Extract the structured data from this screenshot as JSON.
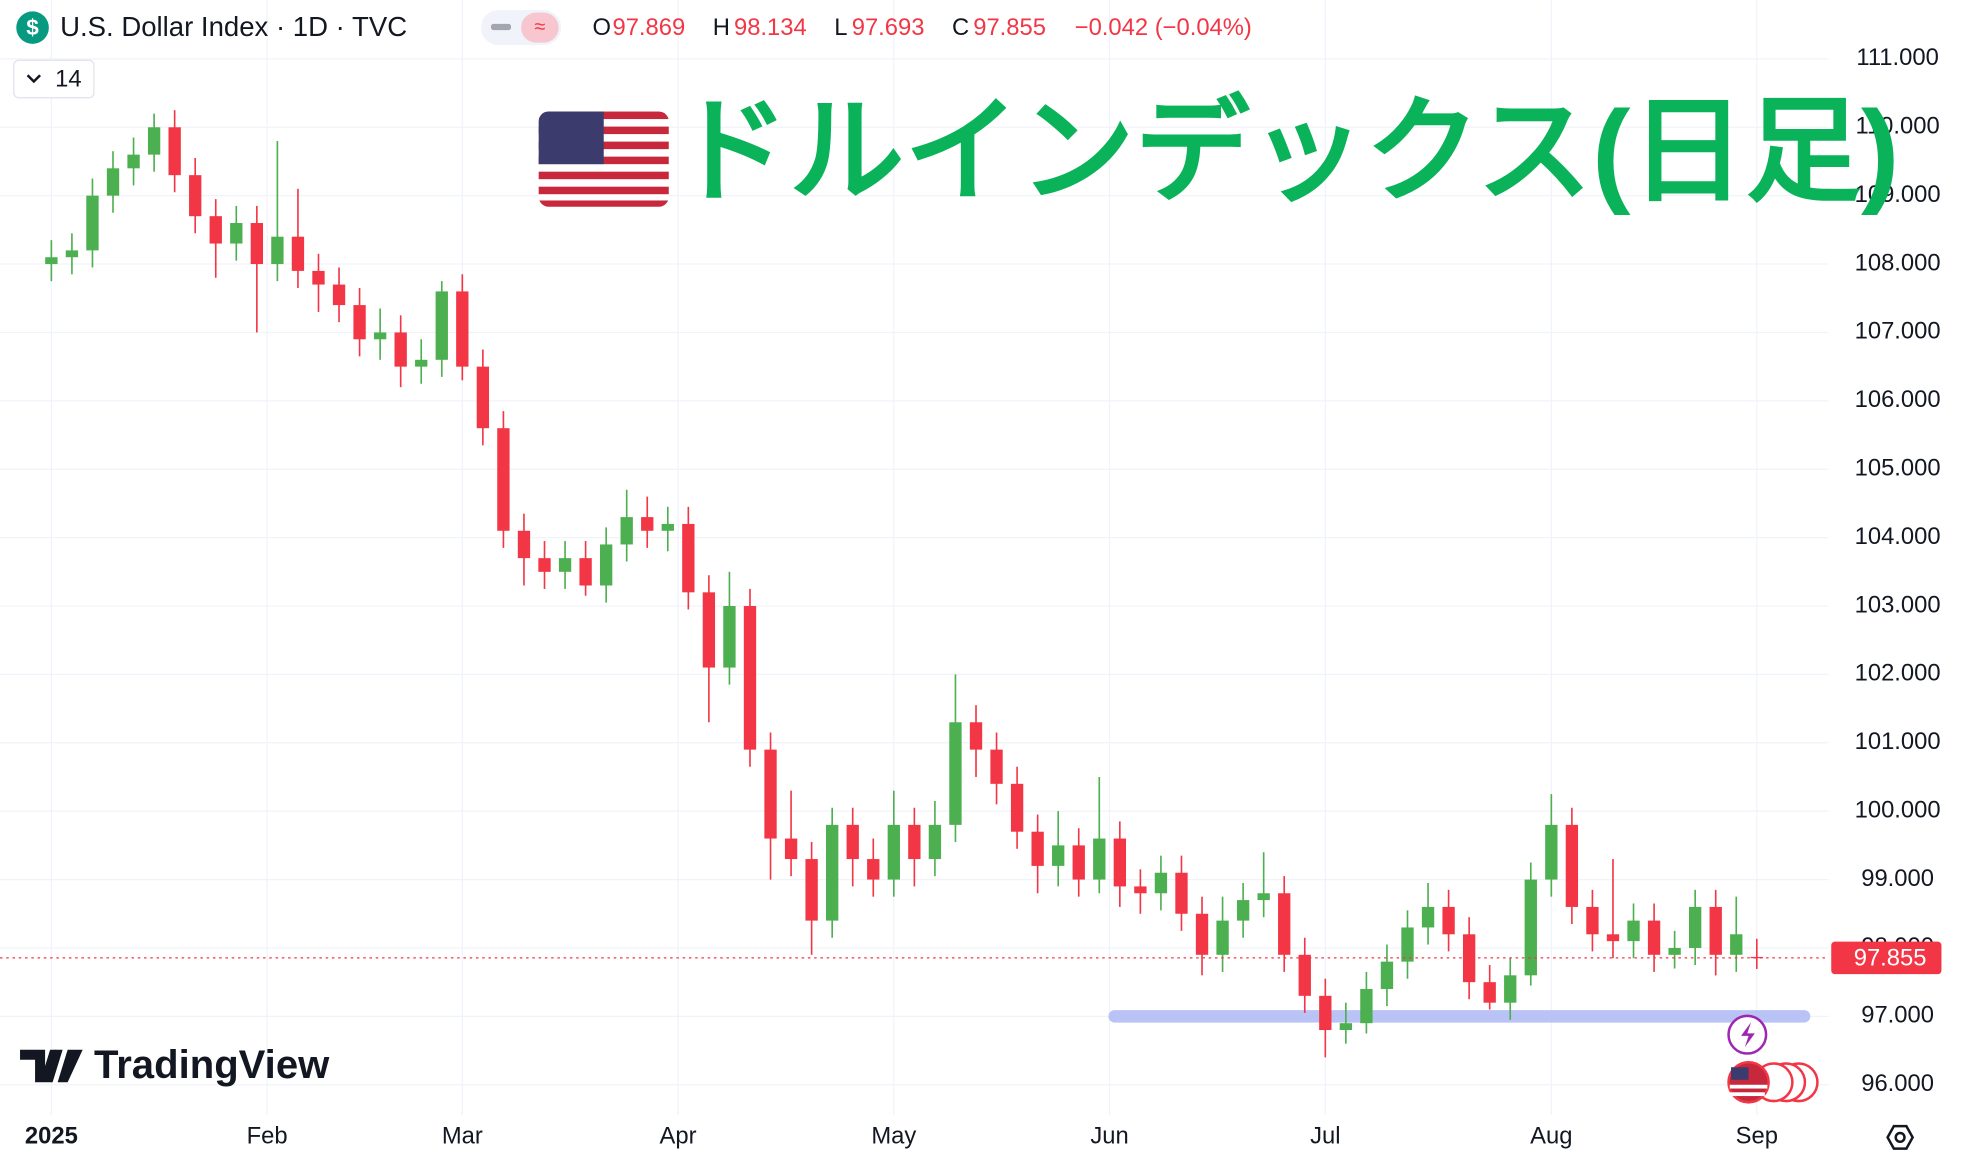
{
  "chart_data": {
    "type": "candlestick",
    "symbol": "U.S. Dollar Index · 1D · TVC",
    "title": "ドルインデックス(日足)",
    "ohlc_labels": [
      "O",
      "H",
      "L",
      "C"
    ],
    "change": "−0.042 (−0.04%)",
    "indicator_count": 14,
    "brand": "TradingView",
    "up_color": "#4caf50",
    "down_color": "#f23645",
    "xlim": [
      -5,
      173
    ],
    "ylim": [
      95.56,
      111.86
    ],
    "yticks": [
      {
        "value": 96,
        "label": "96.000"
      },
      {
        "value": 97,
        "label": "97.000"
      },
      {
        "value": 98,
        "label": "98.000"
      },
      {
        "value": 99,
        "label": "99.000"
      },
      {
        "value": 100,
        "label": "100.000"
      },
      {
        "value": 101,
        "label": "101.000"
      },
      {
        "value": 102,
        "label": "102.000"
      },
      {
        "value": 103,
        "label": "103.000"
      },
      {
        "value": 104,
        "label": "104.000"
      },
      {
        "value": 105,
        "label": "105.000"
      },
      {
        "value": 106,
        "label": "106.000"
      },
      {
        "value": 107,
        "label": "107.000"
      },
      {
        "value": 108,
        "label": "108.000"
      },
      {
        "value": 109,
        "label": "109.000"
      },
      {
        "value": 110,
        "label": "110.000"
      },
      {
        "value": 111,
        "label": "111.000"
      }
    ],
    "xticks": [
      {
        "value": 0,
        "label": "2025"
      },
      {
        "value": 21,
        "label": "Feb"
      },
      {
        "value": 40,
        "label": "Mar"
      },
      {
        "value": 61,
        "label": "Apr"
      },
      {
        "value": 82,
        "label": "May"
      },
      {
        "value": 103,
        "label": "Jun"
      },
      {
        "value": 124,
        "label": "Jul"
      },
      {
        "value": 146,
        "label": "Aug"
      },
      {
        "value": 166,
        "label": "Sep"
      }
    ],
    "grid": true,
    "support_zone": {
      "value": 97,
      "x": [
        103.5,
        170.6
      ]
    },
    "x": [
      0,
      2,
      4,
      6,
      8,
      10,
      12,
      14,
      16,
      18,
      20,
      22,
      24,
      26,
      28,
      30,
      32,
      34,
      36,
      38,
      40,
      42,
      44,
      46,
      48,
      50,
      52,
      54,
      56,
      58,
      60,
      62,
      64,
      66,
      68,
      70,
      72,
      74,
      76,
      78,
      80,
      82,
      84,
      86,
      88,
      90,
      92,
      94,
      96,
      98,
      100,
      102,
      104,
      106,
      108,
      110,
      112,
      114,
      116,
      118,
      120,
      122,
      124,
      126,
      128,
      130,
      132,
      134,
      136,
      138,
      140,
      142,
      144,
      146,
      148,
      150,
      152,
      154,
      156,
      158,
      160,
      162,
      164,
      166
    ],
    "open": [
      108.0,
      108.1,
      108.2,
      109.0,
      109.4,
      109.6,
      110.0,
      109.3,
      108.7,
      108.3,
      108.6,
      108.0,
      108.4,
      107.9,
      107.7,
      107.4,
      106.9,
      107.0,
      106.5,
      106.6,
      107.6,
      106.5,
      105.6,
      104.1,
      103.7,
      103.5,
      103.7,
      103.3,
      103.9,
      104.3,
      104.1,
      104.2,
      103.2,
      102.1,
      103.0,
      100.9,
      99.6,
      99.3,
      98.4,
      99.8,
      99.3,
      99.0,
      99.8,
      99.3,
      99.8,
      101.3,
      100.9,
      100.4,
      99.7,
      99.2,
      99.5,
      99.0,
      99.6,
      98.9,
      98.8,
      99.1,
      98.5,
      97.9,
      98.4,
      98.7,
      98.8,
      97.9,
      97.3,
      96.8,
      96.9,
      97.4,
      97.8,
      98.3,
      98.6,
      98.2,
      97.5,
      97.2,
      97.6,
      99.0,
      99.8,
      98.6,
      98.2,
      98.1,
      98.4,
      97.9,
      98.0,
      98.6,
      97.9,
      97.869
    ],
    "high": [
      108.35,
      108.45,
      109.25,
      109.65,
      109.85,
      110.2,
      110.25,
      109.55,
      108.95,
      108.85,
      108.85,
      109.8,
      109.1,
      108.15,
      107.95,
      107.65,
      107.35,
      107.25,
      106.9,
      107.75,
      107.85,
      106.75,
      105.85,
      104.35,
      103.95,
      103.95,
      103.95,
      104.15,
      104.7,
      104.6,
      104.45,
      104.45,
      103.45,
      103.5,
      103.25,
      101.15,
      100.3,
      99.55,
      100.05,
      100.05,
      99.6,
      100.3,
      100.05,
      100.15,
      102.0,
      101.55,
      101.15,
      100.65,
      99.95,
      100.0,
      99.75,
      100.5,
      99.85,
      99.15,
      99.35,
      99.35,
      98.75,
      98.75,
      98.95,
      99.4,
      99.05,
      98.15,
      97.55,
      97.2,
      97.65,
      98.05,
      98.55,
      98.95,
      98.85,
      98.45,
      97.75,
      97.85,
      99.25,
      100.25,
      100.05,
      98.85,
      99.3,
      98.65,
      98.65,
      98.25,
      98.85,
      98.85,
      98.75,
      98.134
    ],
    "low": [
      107.75,
      107.85,
      107.95,
      108.75,
      109.15,
      109.35,
      109.05,
      108.45,
      107.8,
      108.05,
      107.0,
      107.75,
      107.65,
      107.3,
      107.15,
      106.65,
      106.6,
      106.2,
      106.25,
      106.35,
      106.3,
      105.35,
      103.85,
      103.3,
      103.25,
      103.25,
      103.15,
      103.05,
      103.65,
      103.85,
      103.8,
      102.95,
      101.3,
      101.85,
      100.65,
      99.0,
      99.05,
      97.9,
      98.15,
      98.9,
      98.75,
      98.75,
      98.9,
      99.05,
      99.55,
      100.5,
      100.1,
      99.45,
      98.8,
      98.9,
      98.75,
      98.8,
      98.6,
      98.5,
      98.55,
      98.25,
      97.6,
      97.65,
      98.15,
      98.45,
      97.65,
      97.05,
      96.4,
      96.6,
      96.75,
      97.15,
      97.55,
      98.05,
      97.95,
      97.25,
      97.1,
      96.95,
      97.45,
      98.75,
      98.35,
      97.95,
      97.85,
      97.85,
      97.65,
      97.7,
      97.75,
      97.6,
      97.65,
      97.693
    ],
    "close": [
      108.1,
      108.2,
      109.0,
      109.4,
      109.6,
      110.0,
      109.3,
      108.7,
      108.3,
      108.6,
      108.0,
      108.4,
      107.9,
      107.7,
      107.4,
      106.9,
      107.0,
      106.5,
      106.6,
      107.6,
      106.5,
      105.6,
      104.1,
      103.7,
      103.5,
      103.7,
      103.3,
      103.9,
      104.3,
      104.1,
      104.2,
      103.2,
      102.1,
      103.0,
      100.9,
      99.6,
      99.3,
      98.4,
      99.8,
      99.3,
      99.0,
      99.8,
      99.3,
      99.8,
      101.3,
      100.9,
      100.4,
      99.7,
      99.2,
      99.5,
      99.0,
      99.6,
      98.9,
      98.8,
      99.1,
      98.5,
      97.9,
      98.4,
      98.7,
      98.8,
      97.9,
      97.3,
      96.8,
      96.9,
      97.4,
      97.8,
      98.3,
      98.6,
      98.2,
      97.5,
      97.2,
      97.6,
      99.0,
      99.8,
      98.6,
      98.2,
      98.1,
      98.4,
      97.9,
      98.0,
      98.6,
      97.9,
      98.2,
      97.855
    ]
  }
}
